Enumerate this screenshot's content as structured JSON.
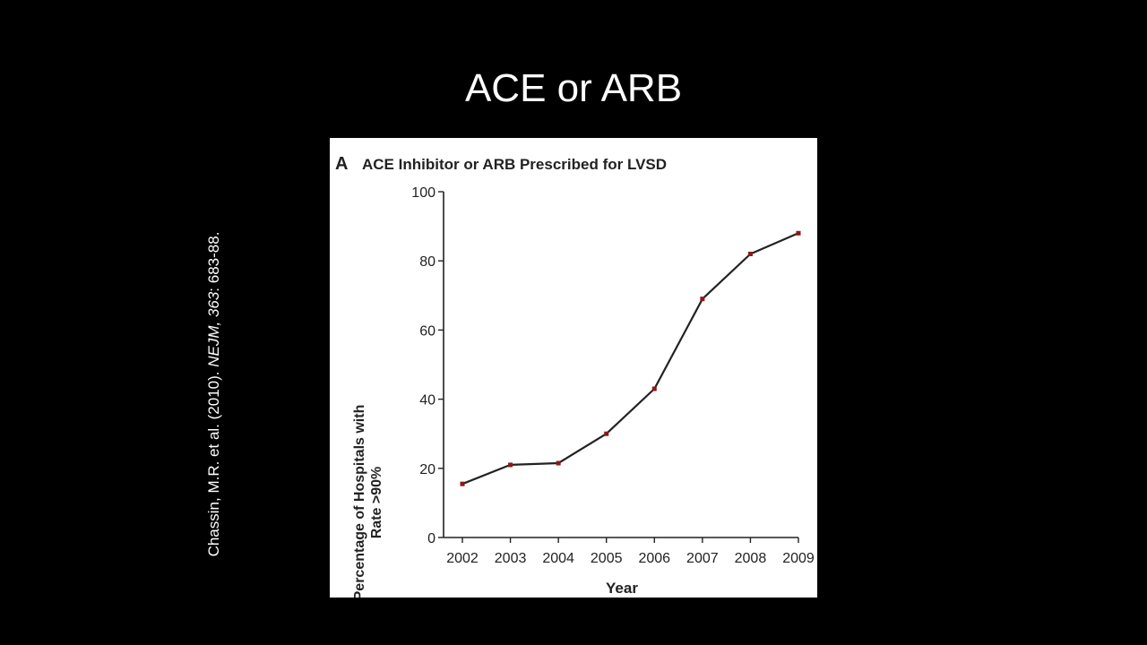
{
  "slide": {
    "title": "ACE or ARB"
  },
  "citation": {
    "authors": "Chassin, M.R. et al. (2010). ",
    "journal": "NEJM, 363",
    "pages": ": 683-88."
  },
  "colors": {
    "background": "#000000",
    "panel": "#ffffff",
    "line": "#222222",
    "marker": "#8b1a1a"
  },
  "chart_data": {
    "type": "line",
    "panel_letter": "A",
    "title": "ACE Inhibitor or ARB Prescribed for LVSD",
    "xlabel": "Year",
    "ylabel_line1": "Percentage of Hospitals with",
    "ylabel_line2": "Rate >90%",
    "categories": [
      "2002",
      "2003",
      "2004",
      "2005",
      "2006",
      "2007",
      "2008",
      "2009"
    ],
    "values": [
      15.5,
      21,
      21.5,
      30,
      43,
      69,
      82,
      88
    ],
    "ylim": [
      0,
      100
    ],
    "yticks": [
      0,
      20,
      40,
      60,
      80,
      100
    ],
    "grid": false
  }
}
